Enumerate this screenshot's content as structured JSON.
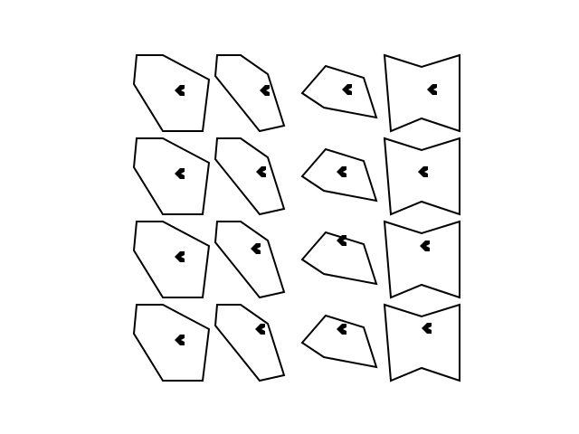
{
  "palette": {
    "background": "#ffffff",
    "stroke": "#000000",
    "marker": "#000000"
  },
  "grid": {
    "rows": 4,
    "columns": 4,
    "column_shapes": [
      "irregular-hexagon",
      "slanted-pentagon",
      "tilted-kite",
      "notched-rectangle"
    ],
    "marker_icon": "left-arrow-dot-icon"
  }
}
